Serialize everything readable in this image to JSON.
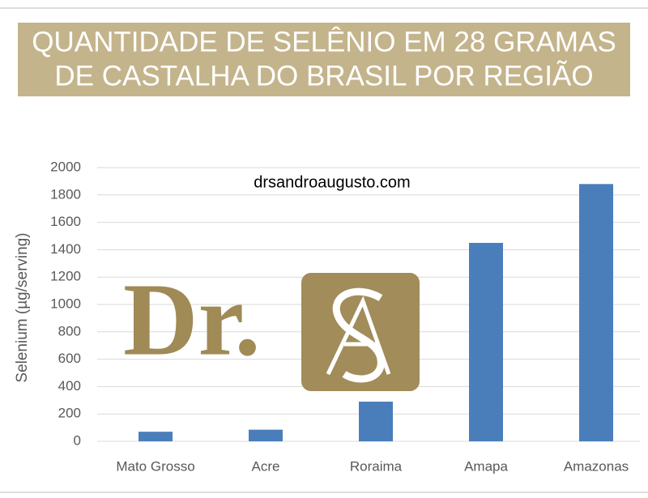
{
  "chart_data": {
    "type": "bar",
    "title": [
      "QUANTIDADE DE SELÊNIO EM 28 GRAMAS",
      "DE CASTALHA DO BRASIL POR REGIÃO"
    ],
    "watermark": "drsandroaugusto.com",
    "logo_text": "Dr.",
    "y_label": "Selenium (µg/serving)",
    "categories": [
      "Mato Grosso",
      "Acre",
      "Roraima",
      "Amapa",
      "Amazonas"
    ],
    "values": [
      70,
      85,
      290,
      1450,
      1880
    ],
    "color": "#4a7ebb",
    "ylim": [
      0,
      2000
    ],
    "yticks": [
      0,
      200,
      400,
      600,
      800,
      1000,
      1200,
      1400,
      1600,
      1800,
      2000
    ],
    "grid": true
  }
}
